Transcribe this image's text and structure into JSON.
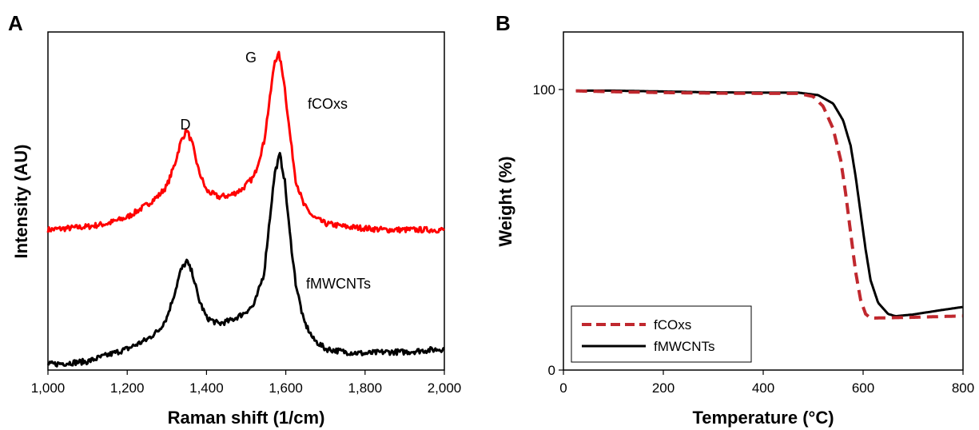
{
  "chart_data": [
    {
      "panel": "A",
      "type": "line",
      "xlabel": "Raman shift (1/cm)",
      "ylabel": "Intensity (AU)",
      "xlim": [
        1000,
        2000
      ],
      "x_ticks": [
        "1,000",
        "1,200",
        "1,400",
        "1,600",
        "1,800",
        "2,000"
      ],
      "grid": false,
      "annotations": [
        {
          "text": "D",
          "x": 1350
        },
        {
          "text": "G",
          "x": 1580
        }
      ],
      "series": [
        {
          "name": "fCOxs",
          "color": "#ff0000",
          "x": [
            1000,
            1050,
            1100,
            1150,
            1200,
            1250,
            1280,
            1300,
            1320,
            1335,
            1350,
            1365,
            1380,
            1400,
            1430,
            1460,
            1490,
            1520,
            1545,
            1560,
            1572,
            1583,
            1595,
            1610,
            1625,
            1645,
            1670,
            1700,
            1750,
            1800,
            1850,
            1900,
            1950,
            2000
          ],
          "y": [
            0.44,
            0.445,
            0.45,
            0.46,
            0.48,
            0.52,
            0.55,
            0.58,
            0.65,
            0.72,
            0.76,
            0.71,
            0.63,
            0.565,
            0.545,
            0.55,
            0.57,
            0.61,
            0.72,
            0.86,
            0.98,
            1.0,
            0.92,
            0.75,
            0.6,
            0.52,
            0.48,
            0.46,
            0.45,
            0.445,
            0.44,
            0.44,
            0.44,
            0.44
          ]
        },
        {
          "name": "fMWCNTs",
          "color": "#000000",
          "x": [
            1000,
            1050,
            1100,
            1150,
            1200,
            1250,
            1280,
            1300,
            1320,
            1335,
            1350,
            1365,
            1380,
            1400,
            1430,
            1460,
            1490,
            1520,
            1545,
            1560,
            1572,
            1585,
            1597,
            1610,
            1625,
            1645,
            1670,
            1700,
            1750,
            1800,
            1850,
            1900,
            1950,
            2000
          ],
          "y": [
            0.01,
            0.015,
            0.02,
            0.04,
            0.06,
            0.09,
            0.12,
            0.16,
            0.24,
            0.31,
            0.34,
            0.3,
            0.22,
            0.16,
            0.14,
            0.15,
            0.17,
            0.2,
            0.3,
            0.48,
            0.62,
            0.68,
            0.6,
            0.43,
            0.27,
            0.15,
            0.09,
            0.06,
            0.05,
            0.045,
            0.05,
            0.05,
            0.055,
            0.06
          ]
        }
      ],
      "series_labels": [
        "fCOxs",
        "fMWCNTs"
      ]
    },
    {
      "panel": "B",
      "type": "line",
      "xlabel": "Temperature (°C)",
      "ylabel": "Weight (%)",
      "xlim": [
        0,
        800
      ],
      "ylim": [
        0,
        100
      ],
      "x_ticks": [
        "0",
        "200",
        "400",
        "600",
        "800"
      ],
      "y_ticks": [
        "0",
        "100"
      ],
      "y_tick_values": [
        0,
        100
      ],
      "grid": false,
      "legend_position": "bottom-left",
      "series": [
        {
          "name": "fCOxs",
          "color": "#c0282e",
          "dash": "dashed",
          "x": [
            25,
            100,
            200,
            300,
            400,
            470,
            500,
            520,
            540,
            555,
            565,
            575,
            585,
            595,
            605,
            615,
            640,
            700,
            800
          ],
          "y": [
            99.5,
            99.2,
            98.9,
            98.7,
            98.6,
            98.6,
            97.5,
            94,
            86,
            75,
            63,
            49,
            35,
            25,
            20,
            18.5,
            18.6,
            18.8,
            19.3
          ]
        },
        {
          "name": "fMWCNTs",
          "color": "#000000",
          "dash": "solid",
          "x": [
            25,
            100,
            200,
            300,
            400,
            470,
            510,
            540,
            560,
            575,
            585,
            595,
            605,
            615,
            630,
            650,
            665,
            700,
            750,
            800
          ],
          "y": [
            99.6,
            99.6,
            99.3,
            99,
            98.9,
            98.9,
            98,
            95,
            89,
            80,
            69,
            56,
            43,
            32,
            24,
            20,
            19.2,
            19.8,
            21.2,
            22.5
          ]
        }
      ]
    }
  ]
}
